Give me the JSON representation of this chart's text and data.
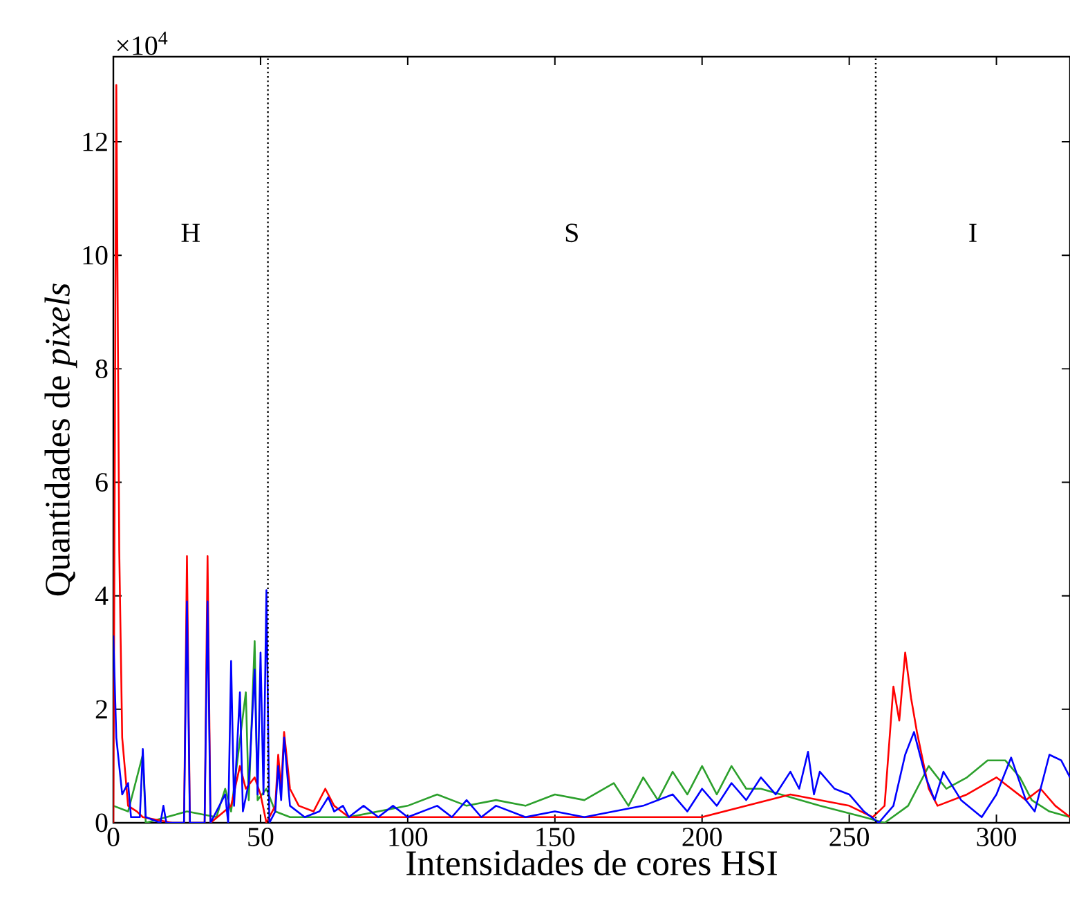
{
  "chart_data": {
    "type": "line",
    "xlabel": "Intensidades de cores HSI",
    "ylabel": "Quantidades de *pixels*",
    "xlim": [
      0,
      325
    ],
    "ylim": [
      0,
      13.5
    ],
    "xticks": [
      0,
      50,
      100,
      150,
      200,
      250,
      300
    ],
    "yticks": [
      0,
      2,
      4,
      6,
      8,
      10,
      12
    ],
    "annotations": [
      "×10$^{4}$",
      "H",
      "S",
      "I"
    ],
    "ref_lines": [
      {
        "axis": "x",
        "value": 52.5,
        "color": "#000000",
        "line_style": "dotted"
      },
      {
        "axis": "x",
        "value": 259,
        "color": "#000000",
        "line_style": "dotted"
      }
    ],
    "series": [
      {
        "color": "#2ca02c",
        "x": [
          0,
          5,
          10,
          11,
          25,
          35,
          38,
          40,
          45,
          46,
          48,
          49,
          52,
          55,
          60,
          80,
          100,
          110,
          120,
          130,
          140,
          150,
          160,
          170,
          175,
          180,
          185,
          190,
          195,
          200,
          205,
          210,
          215,
          220,
          240,
          255,
          262,
          270,
          277,
          283,
          290,
          297,
          303,
          308,
          312,
          318,
          325
        ],
        "values": [
          0.3,
          0.2,
          1.2,
          0,
          0.2,
          0.1,
          0.6,
          0.2,
          2.3,
          0.4,
          3.2,
          0.4,
          0.6,
          0.2,
          0.1,
          0.1,
          0.3,
          0.5,
          0.3,
          0.4,
          0.3,
          0.5,
          0.4,
          0.7,
          0.3,
          0.8,
          0.4,
          0.9,
          0.5,
          1.0,
          0.5,
          1.0,
          0.6,
          0.6,
          0.3,
          0.1,
          0,
          0.3,
          1.0,
          0.6,
          0.8,
          1.1,
          1.1,
          0.8,
          0.4,
          0.2,
          0.1
        ]
      },
      {
        "color": "#ff0000",
        "x": [
          0,
          1,
          2,
          3,
          5,
          8,
          10,
          20,
          24,
          25,
          26,
          31,
          32,
          33,
          40,
          43,
          45,
          48,
          50,
          52,
          55,
          56,
          57,
          58,
          60,
          63,
          68,
          72,
          75,
          80,
          120,
          200,
          230,
          250,
          258,
          262,
          265,
          267,
          269,
          271,
          273,
          277,
          280,
          290,
          300,
          310,
          315,
          320,
          325
        ],
        "values": [
          0,
          13,
          4.8,
          1.5,
          0.3,
          0.2,
          0.1,
          0,
          0,
          4.7,
          0,
          0,
          4.7,
          0,
          0.3,
          1.0,
          0.6,
          0.8,
          0.5,
          0,
          0.3,
          1.2,
          0.6,
          1.6,
          0.6,
          0.3,
          0.2,
          0.6,
          0.3,
          0.1,
          0.1,
          0.1,
          0.5,
          0.3,
          0.1,
          0.3,
          2.4,
          1.8,
          3.0,
          2.2,
          1.6,
          0.6,
          0.3,
          0.5,
          0.8,
          0.4,
          0.6,
          0.3,
          0.1
        ]
      },
      {
        "color": "#0000ff",
        "x": [
          0,
          1,
          3,
          5,
          6,
          9,
          10,
          11,
          16,
          17,
          18,
          24,
          25,
          26,
          31,
          32,
          33,
          38,
          39,
          40,
          41,
          43,
          44,
          46,
          48,
          49,
          50,
          51,
          52,
          53,
          55,
          56,
          57,
          58,
          60,
          65,
          70,
          73,
          75,
          78,
          80,
          85,
          90,
          95,
          100,
          110,
          115,
          120,
          125,
          130,
          140,
          150,
          160,
          170,
          180,
          190,
          195,
          200,
          205,
          210,
          215,
          220,
          225,
          230,
          233,
          236,
          238,
          240,
          245,
          250,
          255,
          260,
          265,
          269,
          272,
          276,
          279,
          282,
          288,
          295,
          300,
          305,
          310,
          313,
          318,
          322,
          325
        ],
        "values": [
          3.3,
          1.5,
          0.5,
          0.7,
          0.1,
          0.1,
          1.3,
          0.1,
          0,
          0.3,
          0,
          0,
          3.9,
          0,
          0,
          3.9,
          0,
          0.5,
          0,
          2.85,
          0.3,
          2.3,
          0.2,
          0.7,
          2.7,
          0.5,
          3.0,
          0.5,
          4.1,
          0,
          0.2,
          1.0,
          0.4,
          1.5,
          0.3,
          0.1,
          0.2,
          0.45,
          0.2,
          0.3,
          0.1,
          0.3,
          0.1,
          0.3,
          0.1,
          0.3,
          0.1,
          0.4,
          0.1,
          0.3,
          0.1,
          0.2,
          0.1,
          0.2,
          0.3,
          0.5,
          0.2,
          0.6,
          0.3,
          0.7,
          0.4,
          0.8,
          0.5,
          0.9,
          0.6,
          1.25,
          0.5,
          0.9,
          0.6,
          0.5,
          0.2,
          0,
          0.3,
          1.2,
          1.6,
          0.8,
          0.4,
          0.9,
          0.4,
          0.1,
          0.5,
          1.15,
          0.4,
          0.2,
          1.2,
          1.1,
          0.8
        ]
      }
    ]
  }
}
